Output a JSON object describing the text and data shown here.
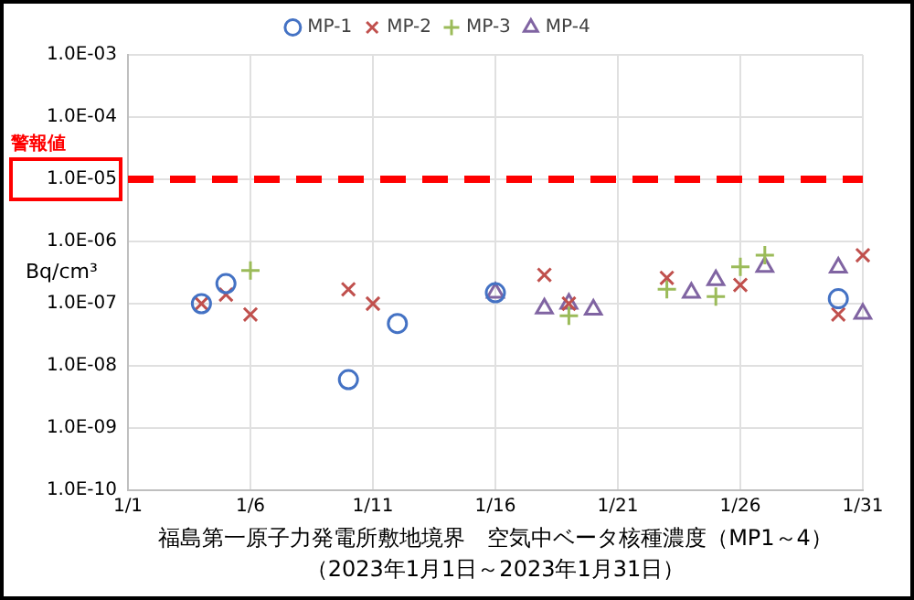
{
  "chart_data": {
    "type": "scatter",
    "xlabel": "福島第一原子力発電所敷地境界　空気中ベータ核種濃度（MP1～4）",
    "subtitle": "（2023年1月1日～2023年1月31日）",
    "ylabel": "Bq/cm³",
    "log": "y",
    "grid": true,
    "legend": "top",
    "xlim": [
      "2023-01-01",
      "2023-01-31"
    ],
    "xticks": [
      {
        "value": "2023-01-01",
        "label": "1/1"
      },
      {
        "value": "2023-01-06",
        "label": "1/6"
      },
      {
        "value": "2023-01-11",
        "label": "1/11"
      },
      {
        "value": "2023-01-16",
        "label": "1/16"
      },
      {
        "value": "2023-01-21",
        "label": "1/21"
      },
      {
        "value": "2023-01-26",
        "label": "1/26"
      },
      {
        "value": "2023-01-31",
        "label": "1/31"
      }
    ],
    "ylim": [
      1e-10,
      0.001
    ],
    "yticks": [
      {
        "value": 1e-10,
        "label": "1.0E-10"
      },
      {
        "value": 1e-09,
        "label": "1.0E-09"
      },
      {
        "value": 1e-08,
        "label": "1.0E-08"
      },
      {
        "value": 1e-07,
        "label": "1.0E-07"
      },
      {
        "value": 1e-06,
        "label": "1.0E-06"
      },
      {
        "value": 1e-05,
        "label": "1.0E-05"
      },
      {
        "value": 0.0001,
        "label": "1.0E-04"
      },
      {
        "value": 0.001,
        "label": "1.0E-03"
      }
    ],
    "ref_lines": [
      {
        "axis": "y",
        "value": 1e-05,
        "label": "警報値",
        "color": "#ff0000",
        "line_style": "dashed"
      }
    ],
    "series": [
      {
        "name": "MP-1",
        "color": "#4472c4",
        "marker": "circle",
        "x": [
          "2023-01-04",
          "2023-01-05",
          "2023-01-10",
          "2023-01-12",
          "2023-01-16",
          "2023-01-30"
        ],
        "values": [
          1e-07,
          2.1e-07,
          6e-09,
          4.8e-08,
          1.5e-07,
          1.2e-07
        ]
      },
      {
        "name": "MP-2",
        "color": "#c0504d",
        "marker": "cross",
        "x": [
          "2023-01-04",
          "2023-01-05",
          "2023-01-06",
          "2023-01-10",
          "2023-01-11",
          "2023-01-18",
          "2023-01-19",
          "2023-01-23",
          "2023-01-26",
          "2023-01-30",
          "2023-01-31"
        ],
        "values": [
          1e-07,
          1.4e-07,
          6.7e-08,
          1.7e-07,
          1e-07,
          2.9e-07,
          1e-07,
          2.6e-07,
          2e-07,
          6.7e-08,
          6e-07
        ]
      },
      {
        "name": "MP-3",
        "color": "#9bbb59",
        "marker": "plus",
        "x": [
          "2023-01-06",
          "2023-01-19",
          "2023-01-23",
          "2023-01-25",
          "2023-01-26",
          "2023-01-27"
        ],
        "values": [
          3.4e-07,
          6.4e-08,
          1.7e-07,
          1.3e-07,
          3.9e-07,
          6e-07
        ]
      },
      {
        "name": "MP-4",
        "color": "#8064a2",
        "marker": "triangle",
        "x": [
          "2023-01-16",
          "2023-01-18",
          "2023-01-19",
          "2023-01-20",
          "2023-01-24",
          "2023-01-25",
          "2023-01-27",
          "2023-01-30",
          "2023-01-31"
        ],
        "values": [
          1.5e-07,
          8.4e-08,
          1e-07,
          8e-08,
          1.5e-07,
          2.4e-07,
          3.9e-07,
          3.8e-07,
          6.9e-08
        ]
      }
    ]
  }
}
